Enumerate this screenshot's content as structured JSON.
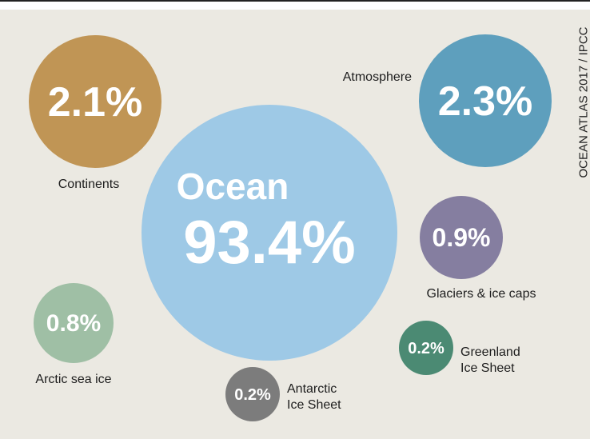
{
  "source": "OCEAN ATLAS 2017 / IPCC",
  "chart_data": {
    "type": "bubble",
    "unit": "%",
    "items": [
      {
        "key": "ocean",
        "label": "Ocean",
        "value_text": "93.4%",
        "value": 93.4,
        "color": "#9ec9e6"
      },
      {
        "key": "continents",
        "label": "Continents",
        "value_text": "2.1%",
        "value": 2.1,
        "color": "#c09555"
      },
      {
        "key": "atmosphere",
        "label": "Atmosphere",
        "value_text": "2.3%",
        "value": 2.3,
        "color": "#5e9fbd"
      },
      {
        "key": "glaciers",
        "label": "Glaciers & ice caps",
        "value_text": "0.9%",
        "value": 0.9,
        "color": "#857ea0"
      },
      {
        "key": "arctic",
        "label": "Arctic sea ice",
        "value_text": "0.8%",
        "value": 0.8,
        "color": "#9fbfa5"
      },
      {
        "key": "antarctic",
        "label": "Antarctic Ice Sheet",
        "label_lines": [
          "Antarctic",
          "Ice Sheet"
        ],
        "value_text": "0.2%",
        "value": 0.2,
        "color": "#7c7c7c"
      },
      {
        "key": "greenland",
        "label": "Greenland Ice Sheet",
        "label_lines": [
          "Greenland",
          "Ice Sheet"
        ],
        "value_text": "0.2%",
        "value": 0.2,
        "color": "#4b8a73"
      }
    ]
  }
}
